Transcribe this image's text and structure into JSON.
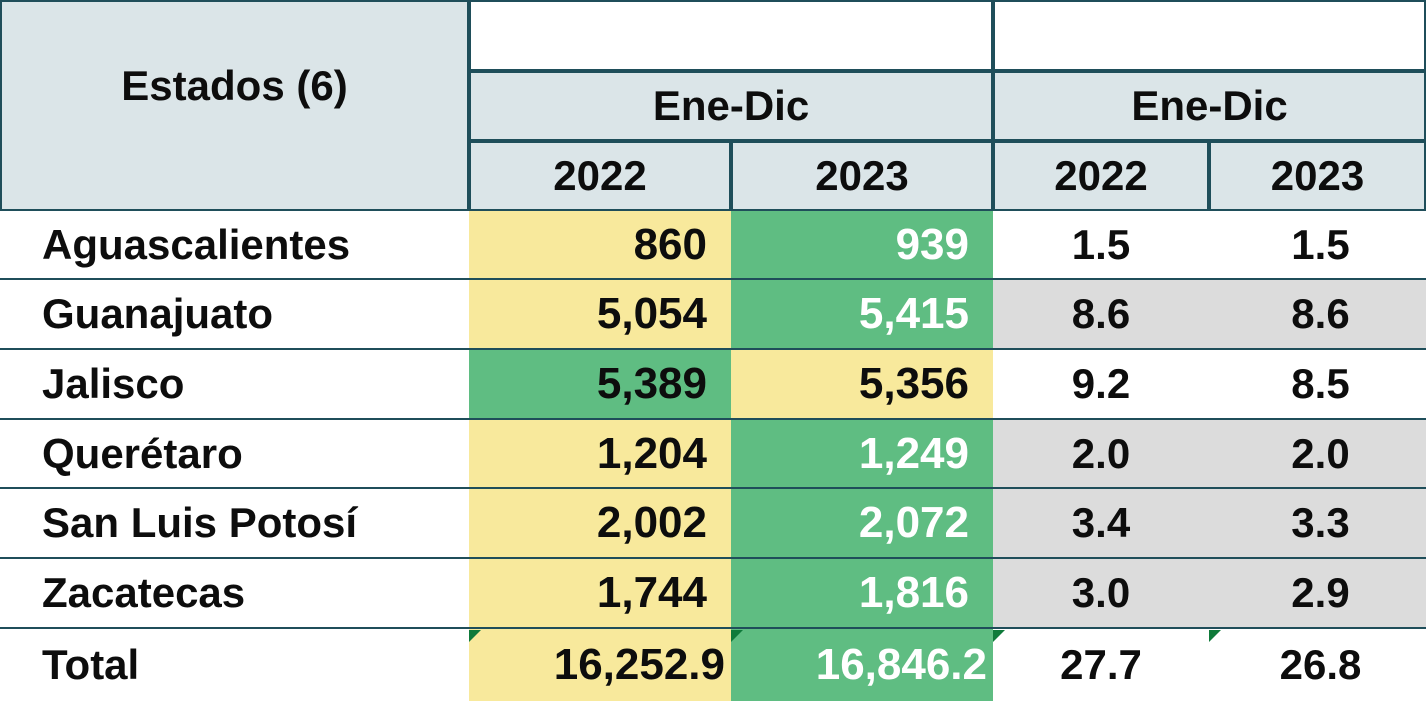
{
  "table": {
    "header": {
      "state_col": "Estados (6)",
      "group1": {
        "label": "Ene-Dic",
        "years": [
          "2022",
          "2023"
        ]
      },
      "group2": {
        "label": "Ene-Dic",
        "years": [
          "2022",
          "2023"
        ]
      }
    },
    "rows": [
      {
        "state": "Aguascalientes",
        "v2022": "860",
        "v2023": "939",
        "p2022": "1.5",
        "p2023": "1.5"
      },
      {
        "state": "Guanajuato",
        "v2022": "5,054",
        "v2023": "5,415",
        "p2022": "8.6",
        "p2023": "8.6"
      },
      {
        "state": "Jalisco",
        "v2022": "5,389",
        "v2023": "5,356",
        "p2022": "9.2",
        "p2023": "8.5"
      },
      {
        "state": "Querétaro",
        "v2022": "1,204",
        "v2023": "1,249",
        "p2022": "2.0",
        "p2023": "2.0"
      },
      {
        "state": "San Luis Potosí",
        "v2022": "2,002",
        "v2023": "2,072",
        "p2022": "3.4",
        "p2023": "3.3"
      },
      {
        "state": "Zacatecas",
        "v2022": "1,744",
        "v2023": "1,816",
        "p2022": "3.0",
        "p2023": "2.9"
      }
    ],
    "total": {
      "state": "Total",
      "v2022": "16,252.9",
      "v2023": "16,846.2",
      "p2022": "27.7",
      "p2023": "26.8"
    }
  },
  "colors": {
    "header_bg": "#dbe5e8",
    "border": "#1f4e5a",
    "highlight_yellow": "#f8e99c",
    "highlight_green": "#5fbd82",
    "shade_gray": "#dcdcdc"
  }
}
